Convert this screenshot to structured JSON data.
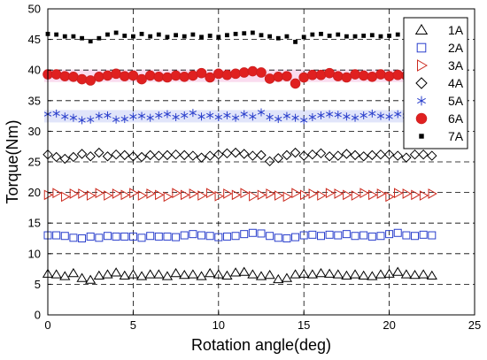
{
  "chart_data": {
    "type": "scatter",
    "title": "",
    "xlabel": "Rotation angle(deg)",
    "ylabel": "Torque(Nm)",
    "xlim": [
      0,
      25
    ],
    "ylim": [
      0,
      50
    ],
    "xticks": [
      0,
      5,
      10,
      15,
      20,
      25
    ],
    "yticks": [
      0,
      5,
      10,
      15,
      20,
      25,
      30,
      35,
      40,
      45,
      50
    ],
    "grid": "dashed",
    "legend_position": "top-right",
    "x_step": 0.5,
    "series": [
      {
        "name": "1A",
        "marker": "triangle-up",
        "color": "#000000",
        "fill": "none",
        "values": [
          6.7,
          6.6,
          6.3,
          6.8,
          6.0,
          5.7,
          6.4,
          6.6,
          6.9,
          6.4,
          6.6,
          6.3,
          6.6,
          6.6,
          6.3,
          6.8,
          6.5,
          6.6,
          6.3,
          6.8,
          6.6,
          6.4,
          6.9,
          7.0,
          6.6,
          6.3,
          6.5,
          5.8,
          6.0,
          6.6,
          6.7,
          6.6,
          6.8,
          6.7,
          6.6,
          6.4,
          6.6,
          6.4,
          6.3,
          6.6,
          6.7,
          7.0,
          6.6,
          6.5,
          6.6,
          6.4
        ]
      },
      {
        "name": "2A",
        "marker": "square",
        "color": "#2a3fcc",
        "fill": "none",
        "values": [
          13.0,
          13.0,
          12.9,
          12.6,
          12.5,
          12.8,
          12.6,
          12.9,
          12.8,
          12.8,
          12.8,
          12.6,
          12.9,
          12.8,
          12.8,
          12.7,
          13.0,
          13.2,
          13.0,
          12.9,
          12.7,
          12.8,
          12.9,
          13.2,
          13.4,
          13.3,
          12.9,
          12.6,
          12.5,
          12.7,
          13.0,
          13.1,
          12.9,
          13.1,
          13.0,
          13.2,
          12.9,
          13.0,
          12.8,
          12.9,
          13.2,
          13.4,
          13.0,
          12.9,
          13.1,
          13.0
        ]
      },
      {
        "name": "3A",
        "marker": "triangle-right",
        "color": "#cc2a1e",
        "fill": "none",
        "values": [
          19.6,
          19.9,
          19.3,
          19.8,
          19.8,
          19.5,
          19.9,
          19.5,
          19.8,
          19.6,
          19.9,
          19.5,
          19.8,
          19.6,
          19.3,
          19.9,
          19.6,
          19.8,
          19.5,
          19.9,
          19.4,
          19.8,
          19.6,
          19.9,
          19.4,
          19.6,
          19.8,
          19.5,
          19.3,
          19.9,
          19.6,
          19.8,
          19.5,
          19.9,
          19.8,
          19.6,
          19.5,
          19.9,
          19.6,
          19.8,
          19.3,
          19.9,
          19.8,
          19.6,
          19.5,
          19.8
        ]
      },
      {
        "name": "4A",
        "marker": "diamond",
        "color": "#000000",
        "fill": "none",
        "values": [
          26.2,
          25.8,
          25.5,
          25.8,
          26.3,
          25.9,
          26.5,
          25.9,
          26.2,
          26.1,
          25.9,
          25.8,
          26.1,
          26.0,
          26.1,
          26.2,
          26.1,
          26.0,
          25.7,
          26.0,
          26.2,
          26.4,
          26.5,
          26.3,
          26.0,
          26.1,
          25.1,
          25.6,
          26.1,
          26.5,
          26.0,
          26.2,
          26.4,
          25.9,
          26.0,
          26.3,
          26.1,
          25.9,
          26.1,
          26.2,
          26.2,
          26.0,
          25.7,
          26.2,
          26.2,
          26.0
        ]
      },
      {
        "name": "5A",
        "marker": "asterisk",
        "color": "#2a3fcc",
        "fill": "none",
        "values": [
          32.8,
          32.9,
          32.4,
          32.2,
          31.8,
          31.9,
          32.5,
          32.6,
          31.9,
          32.0,
          32.4,
          32.5,
          32.2,
          32.6,
          32.8,
          32.3,
          32.6,
          33.0,
          32.4,
          32.6,
          32.3,
          32.6,
          32.2,
          32.8,
          32.4,
          33.1,
          32.3,
          32.0,
          32.5,
          32.2,
          31.8,
          32.3,
          32.6,
          32.8,
          32.7,
          32.4,
          32.2,
          32.6,
          32.9,
          32.5,
          32.4,
          32.8,
          32.5,
          32.6,
          32.4,
          32.5
        ]
      },
      {
        "name": "6A",
        "marker": "circle",
        "color": "#cc1f1f",
        "fill": "#e02020",
        "values": [
          39.3,
          39.3,
          39.0,
          38.9,
          38.5,
          38.3,
          38.9,
          39.1,
          39.4,
          39.0,
          39.1,
          38.5,
          39.1,
          38.9,
          38.8,
          39.1,
          38.9,
          39.1,
          39.5,
          38.8,
          39.4,
          39.2,
          39.4,
          39.6,
          39.8,
          39.6,
          38.6,
          38.9,
          39.0,
          37.8,
          38.8,
          39.2,
          39.2,
          39.5,
          39.0,
          38.8,
          39.3,
          39.1,
          38.9,
          39.3,
          39.0,
          39.2,
          39.1,
          38.9,
          39.0,
          39.2
        ]
      },
      {
        "name": "7A",
        "marker": "square-filled",
        "color": "#000000",
        "fill": "#000000",
        "values": [
          45.9,
          45.8,
          45.5,
          45.5,
          45.2,
          44.7,
          45.2,
          45.8,
          46.1,
          45.6,
          45.5,
          45.9,
          45.5,
          45.8,
          45.4,
          45.7,
          45.5,
          45.8,
          45.4,
          45.6,
          45.4,
          45.7,
          45.9,
          46.0,
          46.1,
          45.7,
          45.5,
          45.2,
          45.5,
          44.6,
          45.4,
          45.8,
          45.9,
          45.6,
          45.8,
          45.5,
          45.5,
          45.6,
          45.7,
          45.5,
          45.6,
          45.8,
          45.4,
          45.6,
          45.5,
          45.6
        ]
      }
    ]
  }
}
